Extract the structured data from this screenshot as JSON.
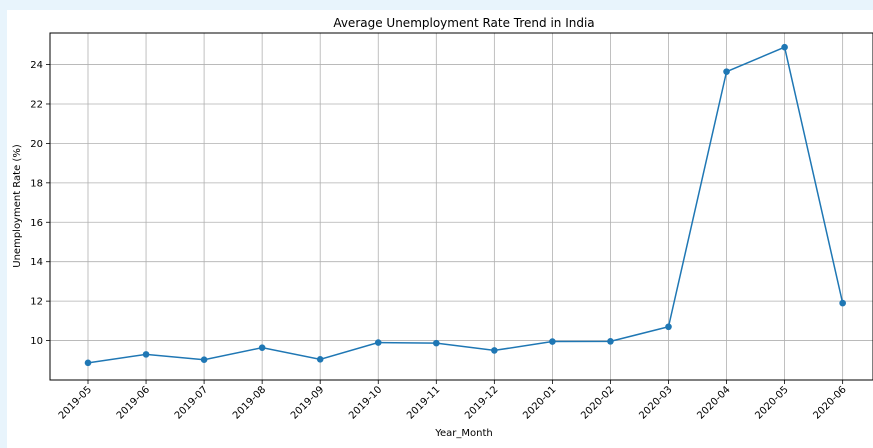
{
  "chart_data": {
    "type": "line",
    "title": "Average Unemployment Rate Trend in India",
    "xlabel": "Year_Month",
    "ylabel": "Unemployment Rate (%)",
    "categories": [
      "2019-05",
      "2019-06",
      "2019-07",
      "2019-08",
      "2019-09",
      "2019-10",
      "2019-11",
      "2019-12",
      "2020-01",
      "2020-02",
      "2020-03",
      "2020-04",
      "2020-05",
      "2020-06"
    ],
    "values": [
      8.87,
      9.3,
      9.03,
      9.64,
      9.05,
      9.9,
      9.87,
      9.5,
      9.95,
      9.96,
      10.7,
      23.64,
      24.88,
      11.9
    ],
    "yticks": [
      10,
      12,
      14,
      16,
      18,
      20,
      22,
      24
    ],
    "ylim": [
      8.0,
      25.6
    ],
    "grid": true,
    "line_color": "#1f77b4",
    "marker": "circle"
  }
}
